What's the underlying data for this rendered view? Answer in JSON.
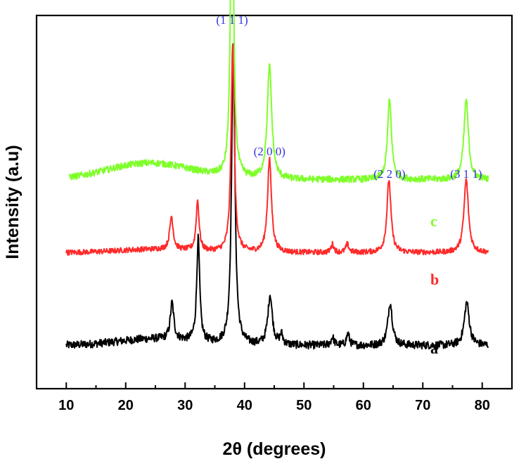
{
  "chart_data": {
    "type": "line",
    "xlabel": "2θ (degrees)",
    "ylabel": "Intensity (a.u)",
    "xlim": [
      5,
      85
    ],
    "x_ticks": [
      10,
      20,
      30,
      40,
      50,
      60,
      70,
      80
    ],
    "y_ticks_labeled": false,
    "grid": false,
    "legend": "none",
    "colors": {
      "a": "#000000",
      "b": "#ff2a2a",
      "c": "#7fff2a",
      "peak_label": "#3333dd"
    },
    "series": [
      {
        "label": "a",
        "color": "#000000",
        "baseline": 0.06,
        "noise": 0.012,
        "baseline_hump": {
          "center": 25,
          "width": 9,
          "height": 0.02
        },
        "x_range": [
          10,
          81
        ],
        "peaks": [
          {
            "x": 27.8,
            "height": 0.11,
            "width": 0.35
          },
          {
            "x": 32.2,
            "height": 0.31,
            "width": 0.3
          },
          {
            "x": 38.1,
            "height": 0.92,
            "width": 0.33
          },
          {
            "x": 44.3,
            "height": 0.15,
            "width": 0.45
          },
          {
            "x": 46.2,
            "height": 0.03,
            "width": 0.3
          },
          {
            "x": 54.8,
            "height": 0.025,
            "width": 0.3
          },
          {
            "x": 57.4,
            "height": 0.035,
            "width": 0.3
          },
          {
            "x": 64.5,
            "height": 0.13,
            "width": 0.45
          },
          {
            "x": 77.4,
            "height": 0.13,
            "width": 0.5
          }
        ]
      },
      {
        "label": "b",
        "color": "#ff2a2a",
        "baseline": 0.34,
        "noise": 0.008,
        "baseline_hump": {
          "center": 25,
          "width": 9,
          "height": 0.01
        },
        "x_range": [
          10,
          81
        ],
        "peaks": [
          {
            "x": 27.7,
            "height": 0.1,
            "width": 0.35
          },
          {
            "x": 32.1,
            "height": 0.15,
            "width": 0.3
          },
          {
            "x": 38.0,
            "height": 0.62,
            "width": 0.32
          },
          {
            "x": 44.2,
            "height": 0.28,
            "width": 0.4
          },
          {
            "x": 54.8,
            "height": 0.025,
            "width": 0.3
          },
          {
            "x": 57.3,
            "height": 0.025,
            "width": 0.3
          },
          {
            "x": 64.3,
            "height": 0.22,
            "width": 0.4
          },
          {
            "x": 77.3,
            "height": 0.22,
            "width": 0.45
          }
        ]
      },
      {
        "label": "c",
        "color": "#7fff2a",
        "baseline": 0.56,
        "noise": 0.01,
        "baseline_hump": {
          "center": 24,
          "width": 10,
          "height": 0.05
        },
        "x_range": [
          10.5,
          81
        ],
        "peaks": [
          {
            "x": 37.9,
            "height": 1.0,
            "width": 0.3
          },
          {
            "x": 44.2,
            "height": 0.34,
            "width": 0.45
          },
          {
            "x": 64.4,
            "height": 0.24,
            "width": 0.4
          },
          {
            "x": 77.3,
            "height": 0.24,
            "width": 0.45
          }
        ]
      }
    ],
    "peak_labels": [
      {
        "text": "(1 1 1)",
        "x": 37.9
      },
      {
        "text": "(2 0 0)",
        "x": 44.2
      },
      {
        "text": "(2 2 0)",
        "x": 64.4
      },
      {
        "text": "(3 1 1)",
        "x": 77.3
      }
    ]
  }
}
